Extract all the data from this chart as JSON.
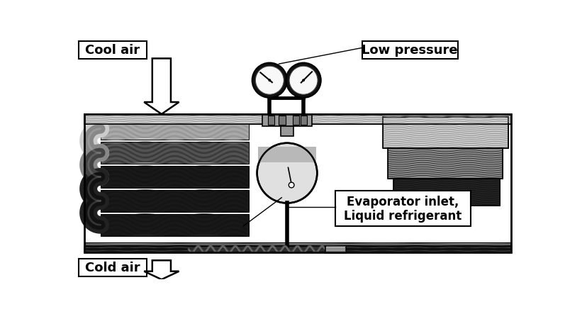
{
  "bg_color": "#ffffff",
  "fig_width": 8.21,
  "fig_height": 4.43,
  "dpi": 100,
  "labels": {
    "cool_air": "Cool air",
    "cold_air": "Cold air",
    "low_pressure": "Low pressure",
    "evap_inlet": "Evaporator inlet,\nLiquid refrigerant"
  },
  "coil_light": "#cccccc",
  "coil_med": "#888888",
  "coil_dark": "#222222",
  "coil_vdark": "#111111",
  "border_color": "#000000",
  "gauge_rim": "#111111",
  "gauge_face": "#f8f8f8",
  "tank_face": "#e0e0e0",
  "pipe_dark": "#1a1a1a",
  "pipe_med": "#555555",
  "manifold_gray": "#999999",
  "right_mid": "#666666"
}
